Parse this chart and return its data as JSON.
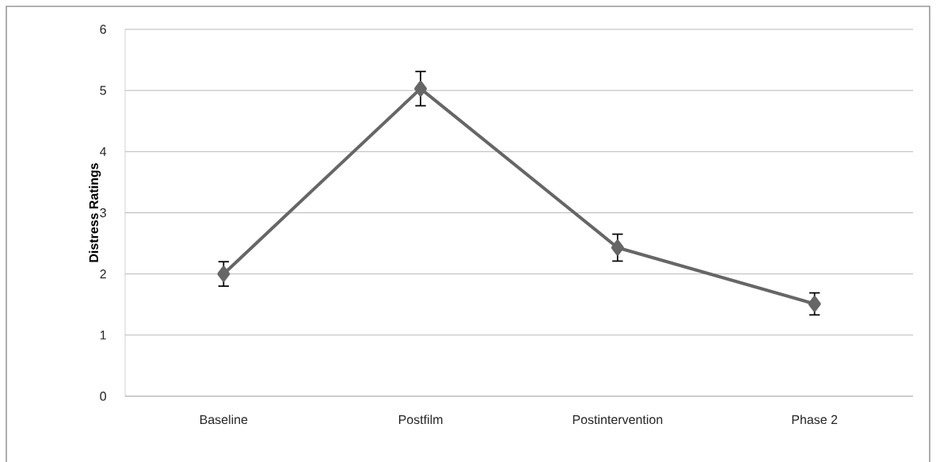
{
  "chart_data": {
    "type": "line",
    "ylabel": "Distress Ratings",
    "categories": [
      "Baseline",
      "Postfilm",
      "Postintervention",
      "Phase 2"
    ],
    "values": [
      2.0,
      5.03,
      2.43,
      1.51
    ],
    "errors": [
      0.2,
      0.28,
      0.22,
      0.18
    ],
    "color": "#666666",
    "marker": "diamond",
    "line_style": "solid",
    "ylim": [
      0,
      6
    ],
    "yticks": [
      0,
      1,
      2,
      3,
      4,
      5,
      6
    ],
    "grid": "y"
  }
}
